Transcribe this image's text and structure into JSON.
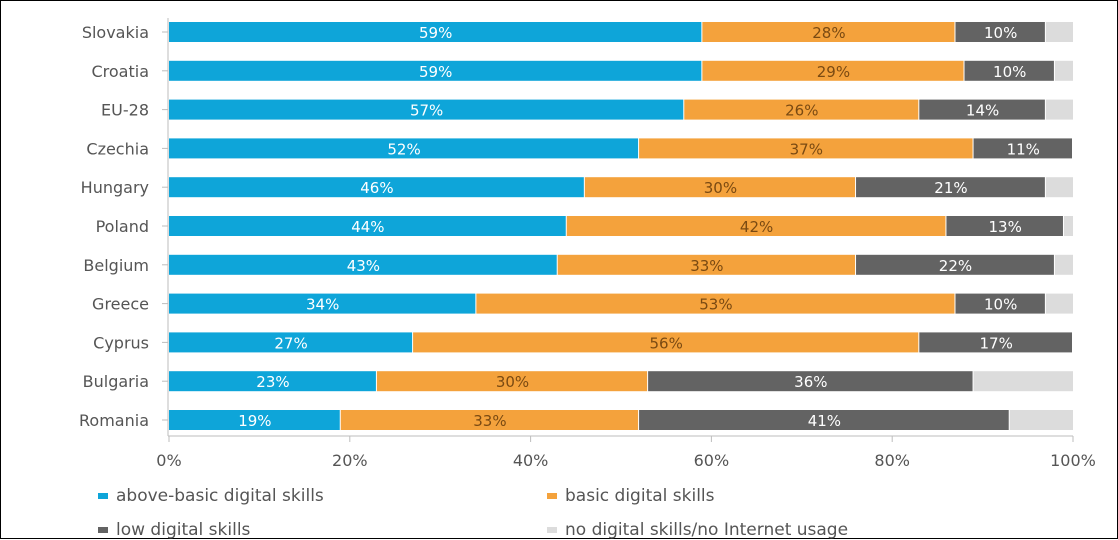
{
  "chart_data": {
    "type": "bar",
    "orientation": "horizontal",
    "stacked": true,
    "categories": [
      "Slovakia",
      "Croatia",
      "EU-28",
      "Czechia",
      "Hungary",
      "Poland",
      "Belgium",
      "Greece",
      "Cyprus",
      "Bulgaria",
      "Romania"
    ],
    "series": [
      {
        "name": "above-basic digital skills",
        "color": "#0ea5d9",
        "values": [
          59,
          59,
          57,
          52,
          46,
          44,
          43,
          34,
          27,
          23,
          19
        ]
      },
      {
        "name": "basic digital skills",
        "color": "#f4a23c",
        "values": [
          28,
          29,
          26,
          37,
          30,
          42,
          33,
          53,
          56,
          30,
          33
        ]
      },
      {
        "name": "low digital skills",
        "color": "#636363",
        "values": [
          10,
          10,
          14,
          11,
          21,
          13,
          22,
          10,
          17,
          36,
          41
        ]
      },
      {
        "name": "no digital skills/no Internet usage",
        "color": "#dcdcdc",
        "values": [
          3,
          2,
          3,
          0,
          3,
          1,
          2,
          3,
          0,
          11,
          7
        ]
      }
    ],
    "data_labels": [
      [
        "59%",
        "59%",
        "57%",
        "52%",
        "46%",
        "44%",
        "43%",
        "34%",
        "27%",
        "23%",
        "19%"
      ],
      [
        "28%",
        "29%",
        "26%",
        "37%",
        "30%",
        "42%",
        "33%",
        "53%",
        "56%",
        "30%",
        "33%"
      ],
      [
        "10%",
        "10%",
        "14%",
        "11%",
        "21%",
        "13%",
        "22%",
        "10%",
        "17%",
        "36%",
        "41%"
      ]
    ],
    "xlim": [
      0,
      100
    ],
    "xticks": [
      "0%",
      "20%",
      "40%",
      "60%",
      "80%",
      "100%"
    ],
    "grid": false,
    "legend_position": "bottom"
  },
  "legend": {
    "items": [
      {
        "label": "above-basic digital skills",
        "color": "#0ea5d9"
      },
      {
        "label": "basic digital skills",
        "color": "#f4a23c"
      },
      {
        "label": "low digital skills",
        "color": "#636363"
      },
      {
        "label": "no digital skills/no Internet usage",
        "color": "#dcdcdc"
      }
    ]
  }
}
